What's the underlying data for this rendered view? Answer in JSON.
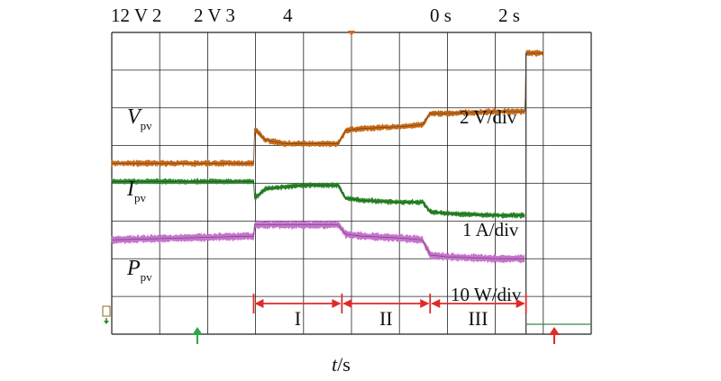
{
  "chart_data": {
    "type": "line",
    "header": [
      "12 V 2",
      "2 V 3",
      "4",
      "0 s",
      "2 s"
    ],
    "xlabel": {
      "var": "t",
      "unit": "/s"
    },
    "grid": "on",
    "events_t": [
      0.74,
      2.16
    ],
    "series": [
      {
        "name": "Vpv",
        "name_main": "V",
        "name_sub": "pv",
        "color": "#c86a18",
        "scale": "2 V/div",
        "t": [
          0.0,
          0.74,
          0.745,
          0.8,
          0.9,
          1.0,
          1.05,
          1.18,
          1.22,
          1.3,
          1.5,
          1.62,
          1.66,
          1.75,
          2.0,
          2.155,
          2.16,
          2.25
        ],
        "y": [
          4.53,
          4.53,
          5.45,
          5.15,
          5.05,
          5.05,
          5.05,
          5.05,
          5.4,
          5.45,
          5.5,
          5.55,
          5.85,
          5.85,
          5.9,
          5.9,
          7.45,
          7.45
        ]
      },
      {
        "name": "Ipv",
        "name_main": "I",
        "name_sub": "pv",
        "color": "#2a8a2a",
        "scale": "1 A/div",
        "t": [
          0.0,
          0.74,
          0.745,
          0.8,
          0.9,
          1.0,
          1.05,
          1.18,
          1.22,
          1.3,
          1.5,
          1.62,
          1.66,
          1.75,
          2.0,
          2.155
        ],
        "y": [
          4.05,
          4.05,
          3.6,
          3.85,
          3.9,
          3.95,
          3.95,
          3.95,
          3.6,
          3.55,
          3.5,
          3.5,
          3.25,
          3.2,
          3.15,
          3.15
        ]
      },
      {
        "name": "Ppv",
        "name_main": "P",
        "name_sub": "pv",
        "color": "#c773cf",
        "scale": "10 W/div",
        "t": [
          0.0,
          0.74,
          0.745,
          0.8,
          0.9,
          1.0,
          1.05,
          1.18,
          1.22,
          1.3,
          1.5,
          1.62,
          1.66,
          1.75,
          2.0,
          2.155
        ],
        "y": [
          2.5,
          2.6,
          2.9,
          2.9,
          2.9,
          2.9,
          2.9,
          2.9,
          2.65,
          2.6,
          2.55,
          2.5,
          2.1,
          2.05,
          2.0,
          2.0
        ]
      }
    ],
    "regions": [
      {
        "label": "I",
        "t0": 0.74,
        "t1": 1.2
      },
      {
        "label": "II",
        "t0": 1.2,
        "t1": 1.66
      },
      {
        "label": "III",
        "t0": 1.66,
        "t1": 2.16
      }
    ]
  }
}
